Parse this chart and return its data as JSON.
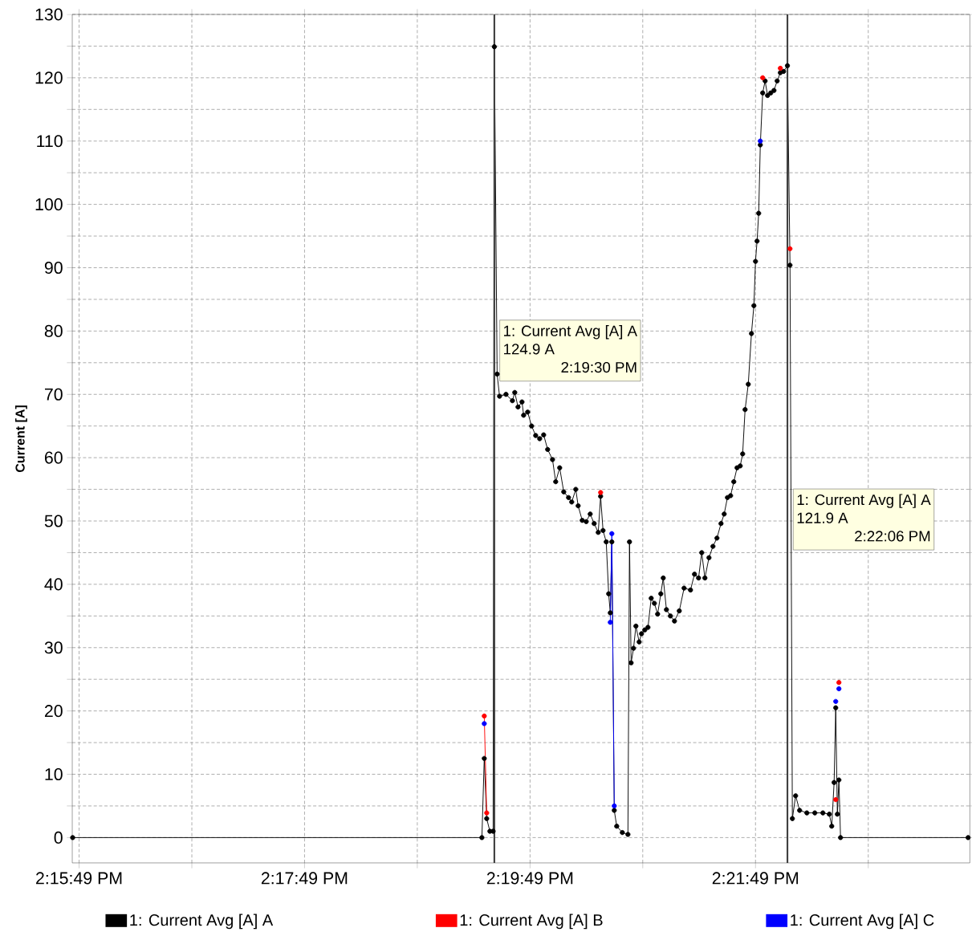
{
  "chart_data": {
    "type": "line",
    "ylabel": "Current [A]",
    "x": [
      14.26266,
      14.32316,
      14.32351,
      14.32387,
      14.32434,
      14.32482,
      14.325,
      14.32541,
      14.32577,
      14.32672,
      14.32767,
      14.32802,
      14.3285,
      14.32909,
      14.32933,
      14.32992,
      14.33051,
      14.33111,
      14.3317,
      14.33229,
      14.33288,
      14.3336,
      14.33407,
      14.33466,
      14.33526,
      14.33597,
      14.33644,
      14.33704,
      14.33739,
      14.33799,
      14.33858,
      14.33917,
      14.33976,
      14.34036,
      14.34071,
      14.34107,
      14.34154,
      14.3419,
      14.34214,
      14.34237,
      14.34273,
      14.34309,
      14.34392,
      14.34475,
      14.34498,
      14.34522,
      14.34558,
      14.34593,
      14.34641,
      14.34676,
      14.34724,
      14.34771,
      14.34819,
      14.34866,
      14.34914,
      14.34961,
      14.34997,
      14.35044,
      14.35103,
      14.35163,
      14.35234,
      14.35305,
      14.354,
      14.35459,
      14.35519,
      14.35566,
      14.35613,
      14.35673,
      14.35732,
      14.35791,
      14.35851,
      14.35898,
      14.35946,
      14.35993,
      14.3604,
      14.36088,
      14.36135,
      14.36171,
      14.36207,
      14.36254,
      14.36301,
      14.36337,
      14.36361,
      14.36384,
      14.36408,
      14.36432,
      14.36467,
      14.36503,
      14.36539,
      14.36586,
      14.36634,
      14.36681,
      14.36728,
      14.36776,
      14.36833,
      14.36871,
      14.36906,
      14.36954,
      14.37013,
      14.3712,
      14.37238,
      14.37357,
      14.37452,
      14.37488,
      14.37523,
      14.37547,
      14.37571,
      14.37594,
      14.37618,
      14.39504
    ],
    "series": [
      {
        "name": "1: Current Avg [A] A",
        "color": "#000000",
        "values": [
          0,
          0,
          12.5,
          3,
          1,
          1,
          124.9,
          73.2,
          69.7,
          70,
          69,
          70.3,
          68,
          68.8,
          66.7,
          67.2,
          65,
          63.5,
          63,
          63.6,
          61.3,
          59.7,
          56.2,
          58.4,
          54.6,
          53.7,
          53,
          55,
          52.4,
          50.1,
          49.9,
          51.1,
          49.6,
          48.2,
          53.9,
          48.5,
          46.7,
          38.5,
          35.5,
          46.7,
          4.3,
          1.8,
          0.8,
          0.5,
          46.7,
          27.6,
          29.9,
          33.4,
          30.9,
          32.2,
          32.8,
          33.2,
          37.8,
          37,
          35.3,
          38.5,
          41,
          36,
          35,
          34.2,
          35.8,
          39.4,
          39.1,
          41.6,
          41,
          45,
          41,
          44.2,
          46,
          47.3,
          49.6,
          51.1,
          53.7,
          54,
          56.2,
          58.4,
          58.7,
          60.6,
          67.6,
          71.6,
          79.6,
          84,
          91,
          94.2,
          98.6,
          109.4,
          117.6,
          119.5,
          117.2,
          117.6,
          118,
          119.5,
          120.8,
          121,
          121.9,
          90.4,
          3,
          6.6,
          4.3,
          3.9,
          3.9,
          3.9,
          3.7,
          1.8,
          8.7,
          20.5,
          3.7,
          9.1,
          0,
          0
        ]
      },
      {
        "name": "1: Current Avg [A] B",
        "color": "#ff0000",
        "values": [
          null,
          null,
          19.2,
          3.9,
          null,
          null,
          null,
          null,
          null,
          null,
          null,
          null,
          null,
          null,
          null,
          null,
          null,
          null,
          null,
          null,
          null,
          null,
          null,
          null,
          null,
          null,
          null,
          null,
          null,
          null,
          null,
          null,
          null,
          null,
          54.5,
          null,
          null,
          null,
          null,
          null,
          null,
          null,
          null,
          null,
          null,
          null,
          null,
          null,
          null,
          null,
          null,
          null,
          null,
          null,
          null,
          null,
          null,
          null,
          null,
          null,
          null,
          null,
          null,
          null,
          null,
          null,
          null,
          null,
          null,
          null,
          null,
          null,
          null,
          null,
          null,
          null,
          null,
          null,
          null,
          null,
          null,
          null,
          null,
          null,
          null,
          null,
          120,
          null,
          null,
          null,
          null,
          null,
          121.5,
          null,
          null,
          93,
          null,
          null,
          null,
          null,
          null,
          null,
          null,
          null,
          null,
          6,
          null,
          24.5,
          null,
          null
        ]
      },
      {
        "name": "1: Current Avg [A] C",
        "color": "#0000ff",
        "values": [
          null,
          null,
          18,
          null,
          null,
          null,
          null,
          null,
          null,
          null,
          null,
          null,
          null,
          null,
          null,
          null,
          null,
          null,
          null,
          null,
          null,
          null,
          null,
          null,
          null,
          null,
          null,
          null,
          null,
          null,
          null,
          null,
          null,
          null,
          null,
          null,
          null,
          null,
          34,
          48,
          5,
          null,
          null,
          null,
          null,
          null,
          null,
          null,
          null,
          null,
          null,
          null,
          null,
          null,
          null,
          null,
          null,
          null,
          null,
          null,
          null,
          null,
          null,
          null,
          null,
          null,
          null,
          null,
          null,
          null,
          null,
          null,
          null,
          null,
          null,
          null,
          null,
          null,
          null,
          null,
          null,
          null,
          null,
          null,
          null,
          110,
          null,
          null,
          null,
          null,
          null,
          null,
          null,
          null,
          null,
          null,
          null,
          null,
          null,
          null,
          null,
          null,
          null,
          null,
          null,
          21.5,
          null,
          23.5,
          null,
          null
        ]
      }
    ],
    "xlim": [
      14.2626,
      14.3953
    ],
    "ylim": [
      -4,
      130
    ],
    "xticks": [
      {
        "value": 14.26361,
        "label": "2:15:49 PM"
      },
      {
        "value": 14.28028,
        "label": null
      },
      {
        "value": 14.29694,
        "label": "2:17:49 PM"
      },
      {
        "value": 14.31361,
        "label": null
      },
      {
        "value": 14.33028,
        "label": "2:19:49 PM"
      },
      {
        "value": 14.34694,
        "label": null
      },
      {
        "value": 14.36361,
        "label": "2:21:49 PM"
      },
      {
        "value": 14.38028,
        "label": null
      }
    ],
    "yticks": [
      0,
      {
        "value": 5,
        "label": null
      },
      10,
      {
        "value": 15,
        "label": null
      },
      20,
      {
        "value": 25,
        "label": null
      },
      30,
      {
        "value": 35,
        "label": null
      },
      40,
      {
        "value": 45,
        "label": null
      },
      50,
      {
        "value": 55,
        "label": null
      },
      60,
      {
        "value": 65,
        "label": null
      },
      70,
      {
        "value": 75,
        "label": null
      },
      80,
      {
        "value": 85,
        "label": null
      },
      90,
      {
        "value": 95,
        "label": null
      },
      100,
      {
        "value": 105,
        "label": null
      },
      110,
      {
        "value": 115,
        "label": null
      },
      120,
      {
        "value": 125,
        "label": null
      },
      130
    ],
    "ref_lines": [
      {
        "axis": "x",
        "value": 14.325,
        "color": "#404040"
      },
      {
        "axis": "x",
        "value": 14.36833,
        "color": "#404040"
      }
    ],
    "annotations": [
      "1: Current Avg [A] A",
      "124.9 A",
      "2:19:30 PM",
      "1: Current Avg [A] A",
      "121.9 A",
      "2:22:06 PM"
    ],
    "grid": true,
    "legend": "bottom",
    "marker": "circle",
    "line_style": "solid"
  }
}
